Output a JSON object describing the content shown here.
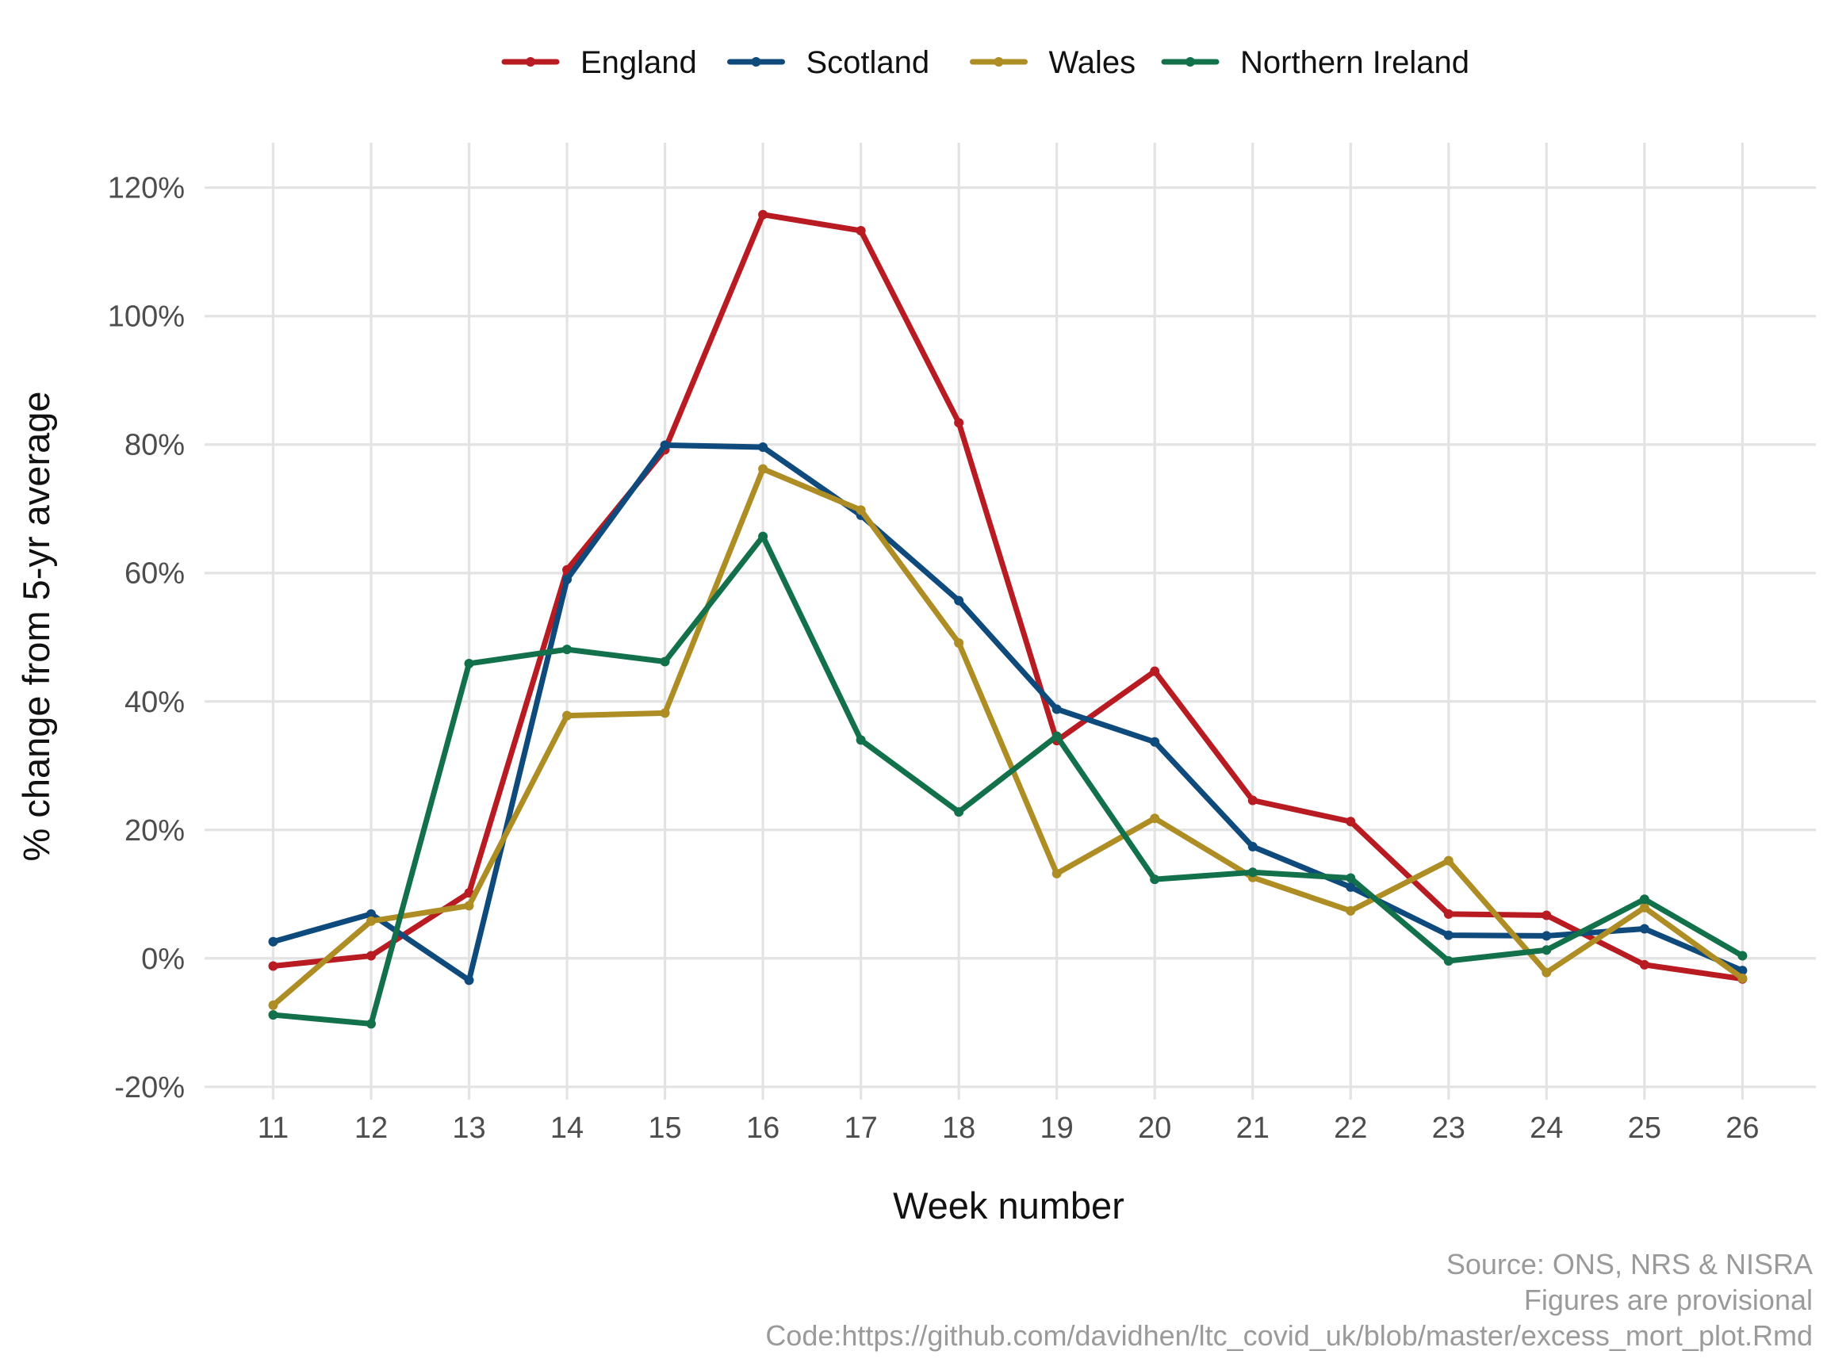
{
  "chart_data": {
    "type": "line",
    "title": "",
    "xlabel": "Week number",
    "ylabel": "% change from 5-yr average",
    "x": [
      11,
      12,
      13,
      14,
      15,
      16,
      17,
      18,
      19,
      20,
      21,
      22,
      23,
      24,
      25,
      26
    ],
    "x_tick_labels": [
      "11",
      "12",
      "13",
      "14",
      "15",
      "16",
      "17",
      "18",
      "19",
      "20",
      "21",
      "22",
      "23",
      "24",
      "25",
      "26"
    ],
    "y_ticks": [
      -20,
      0,
      20,
      40,
      60,
      80,
      100,
      120
    ],
    "y_tick_labels": [
      "-20%",
      "0%",
      "20%",
      "40%",
      "60%",
      "80%",
      "100%",
      "120%"
    ],
    "xlim": [
      10.3,
      26.75
    ],
    "ylim": [
      -22,
      127
    ],
    "grid": true,
    "legend_position": "top",
    "series": [
      {
        "name": "England",
        "color": "#b81b22",
        "values": [
          -1.2,
          0.4,
          10.2,
          60.5,
          79.2,
          115.8,
          113.3,
          83.4,
          33.9,
          44.7,
          24.6,
          21.3,
          6.9,
          6.7,
          -1.0,
          -3.2
        ]
      },
      {
        "name": "Scotland",
        "color": "#0f4a7c",
        "values": [
          2.6,
          6.9,
          -3.4,
          59.0,
          79.9,
          79.6,
          69.0,
          55.7,
          38.8,
          33.7,
          17.4,
          11.1,
          3.6,
          3.5,
          4.6,
          -1.9
        ]
      },
      {
        "name": "Wales",
        "color": "#ad8d24",
        "values": [
          -7.3,
          5.8,
          8.2,
          37.8,
          38.2,
          76.2,
          69.8,
          49.1,
          13.2,
          21.8,
          12.6,
          7.4,
          15.2,
          -2.2,
          7.9,
          -3.1
        ]
      },
      {
        "name": "Northern Ireland",
        "color": "#12714a",
        "values": [
          -8.8,
          -10.2,
          45.9,
          48.1,
          46.2,
          65.7,
          34.0,
          22.8,
          34.6,
          12.3,
          13.4,
          12.5,
          -0.4,
          1.3,
          9.2,
          0.4
        ]
      }
    ],
    "caption": [
      "Source: ONS, NRS & NISRA",
      "Figures are provisional",
      "Code:https://github.com/davidhen/ltc_covid_uk/blob/master/excess_mort_plot.Rmd"
    ]
  }
}
